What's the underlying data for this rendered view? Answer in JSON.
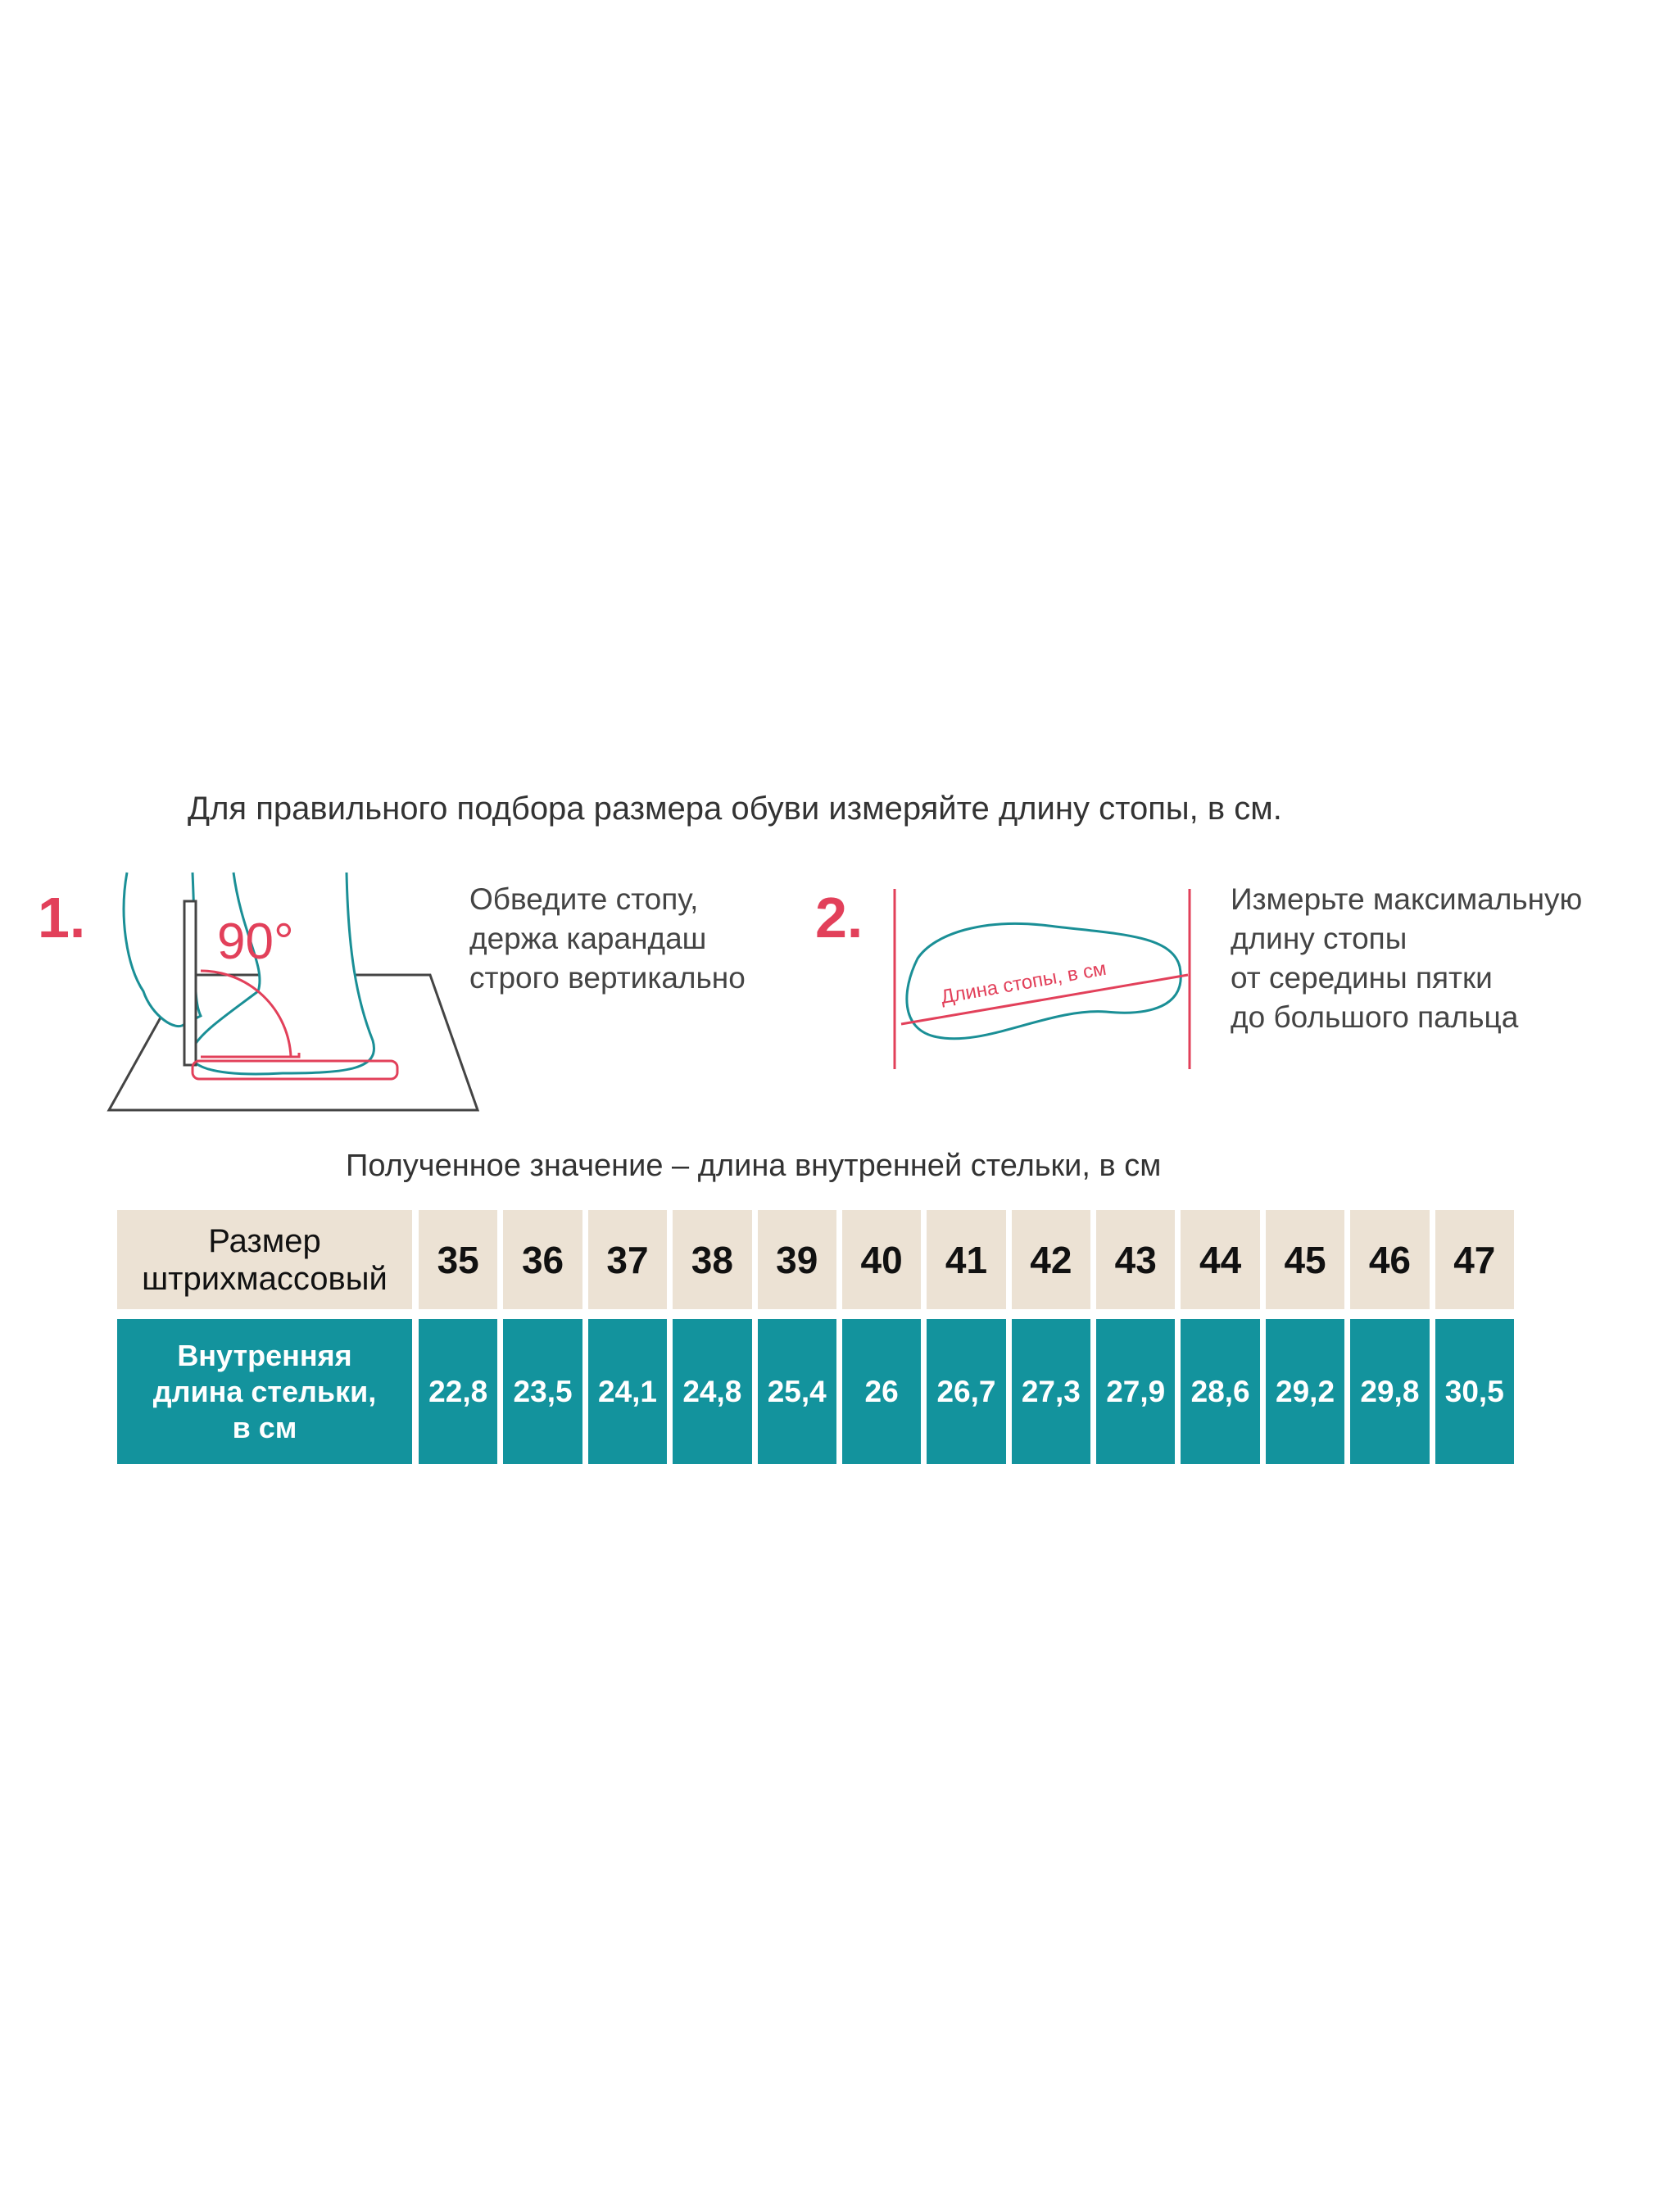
{
  "title": "Для правильного подбора размера обуви измеряйте длину стопы, в см.",
  "steps": [
    {
      "number": "1.",
      "text": "Обведите стопу,\nдержа карандаш\nстрого вертикально",
      "angle_label": "90°"
    },
    {
      "number": "2.",
      "text": "Измерьте максимальную\nдлину стопы\nот середины пятки\nдо большого пальца",
      "foot_label": "Длина стопы, в см"
    }
  ],
  "subtitle": "Полученное значение – длина внутренней стельки, в см",
  "table": {
    "size_label": "Размер\nштрихмассовый",
    "length_label": "Внутренняя\nдлина стельки,\nв см",
    "sizes": [
      "35",
      "36",
      "37",
      "38",
      "39",
      "40",
      "41",
      "42",
      "43",
      "44",
      "45",
      "46",
      "47"
    ],
    "lengths": [
      "22,8",
      "23,5",
      "24,1",
      "24,8",
      "25,4",
      "26",
      "26,7",
      "27,3",
      "27,9",
      "28,6",
      "29,2",
      "29,8",
      "30,5"
    ]
  },
  "colors": {
    "teal": "#13939d",
    "beige": "#ece2d4",
    "accent_red": "#e2405a",
    "outline": "#1a8f96"
  }
}
